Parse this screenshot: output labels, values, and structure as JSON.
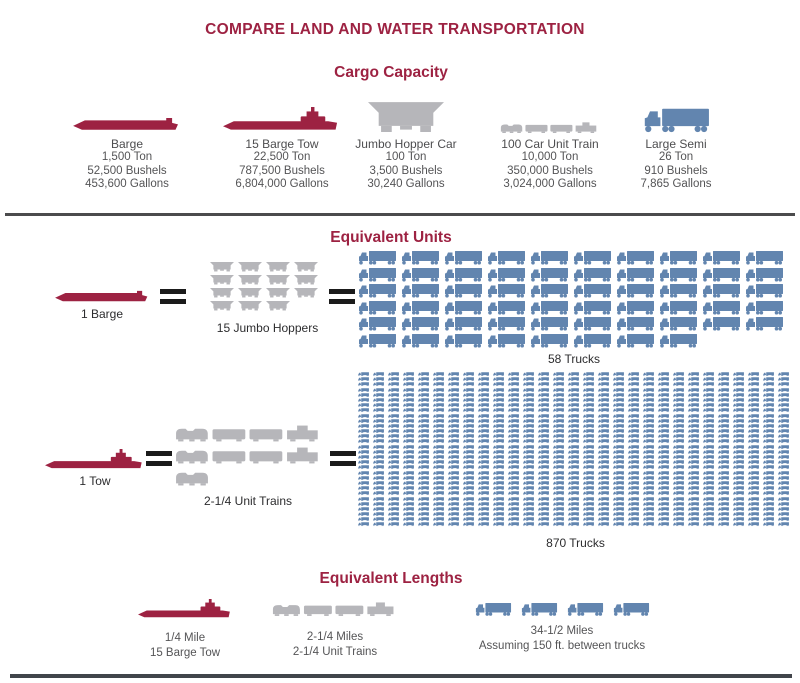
{
  "title": "COMPARE LAND AND WATER TRANSPORTATION",
  "colors": {
    "accent_red": "#9d2242",
    "icon_gray": "#b6b6ba",
    "icon_blue": "#6285af",
    "equals_dark": "#1b1b1b",
    "divider_dark": "#4b4b4d",
    "bottom_bar": "#41454b",
    "text_dark": "#2c2c2e",
    "text_gray": "#545456"
  },
  "cargo_capacity": {
    "heading": "Cargo Capacity",
    "items": [
      {
        "name": "Barge",
        "icon": "barge-icon",
        "stats": [
          "1,500 Ton",
          "52,500 Bushels",
          "453,600 Gallons"
        ]
      },
      {
        "name": "15 Barge Tow",
        "icon": "tow-icon",
        "stats": [
          "22,500 Ton",
          "787,500 Bushels",
          "6,804,000 Gallons"
        ]
      },
      {
        "name": "Jumbo Hopper Car",
        "icon": "hopper-car-icon",
        "stats": [
          "100 Ton",
          "3,500 Bushels",
          "30,240 Gallons"
        ]
      },
      {
        "name": "100 Car Unit Train",
        "icon": "unit-train-icon",
        "stats": [
          "10,000 Ton",
          "350,000 Bushels",
          "3,024,000 Gallons"
        ]
      },
      {
        "name": "Large Semi",
        "icon": "semi-truck-icon",
        "stats": [
          "26 Ton",
          "910 Bushels",
          "7,865 Gallons"
        ]
      }
    ]
  },
  "equivalent_units": {
    "heading": "Equivalent Units",
    "barge_row": {
      "label": "1 Barge",
      "hoppers": {
        "label": "15 Jumbo Hoppers",
        "count": 15,
        "per_row": 4
      },
      "trucks": {
        "label": "58 Trucks",
        "count": 58,
        "per_row": 10
      }
    },
    "tow_row": {
      "label": "1 Tow",
      "trains": {
        "label": "2-1/4 Unit Trains",
        "full_count": 2,
        "partial": "1/4"
      },
      "trucks": {
        "label": "870 Trucks",
        "count": 870,
        "per_row": 29
      }
    }
  },
  "equivalent_lengths": {
    "heading": "Equivalent Lengths",
    "items": [
      {
        "icon": "tow-icon",
        "lines": [
          "1/4 Mile",
          "15 Barge Tow"
        ]
      },
      {
        "icon": "unit-train-icon",
        "lines": [
          "2-1/4 Miles",
          "2-1/4 Unit Trains"
        ]
      },
      {
        "icon": "semi-truck-icon",
        "truck_count": 4,
        "lines": [
          "34-1/2 Miles",
          "Assuming 150 ft. between trucks"
        ]
      }
    ]
  }
}
